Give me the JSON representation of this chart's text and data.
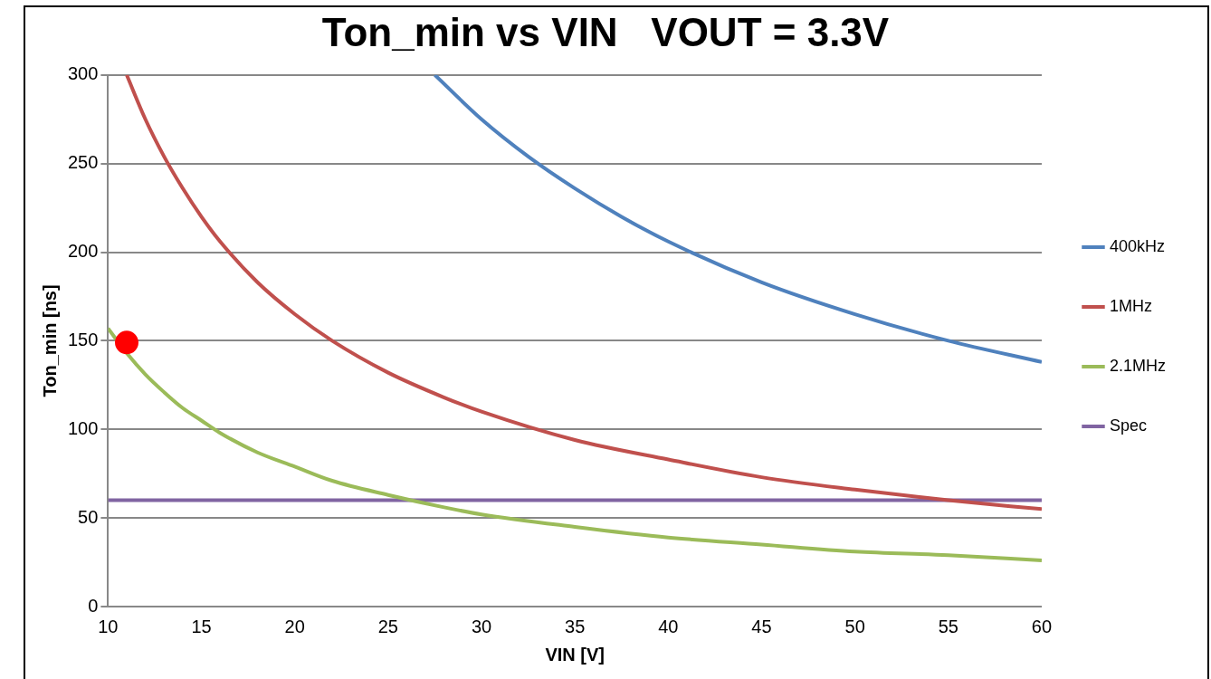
{
  "chart_data": {
    "type": "line",
    "title": "Ton_min vs VIN   VOUT = 3.3V",
    "xlabel": "VIN [V]",
    "ylabel": "Ton_min [ns]",
    "xlim": [
      10,
      60
    ],
    "xticks": [
      10,
      15,
      20,
      25,
      30,
      35,
      40,
      45,
      50,
      55,
      60
    ],
    "ylim": [
      0,
      300
    ],
    "yticks": [
      0,
      50,
      100,
      150,
      200,
      250,
      300
    ],
    "grid": "y",
    "legend": "right",
    "marker": "none",
    "line_style": "solid",
    "series": [
      {
        "name": "400kHz",
        "color": "#4f81bd",
        "x": [
          27.5,
          30,
          32.5,
          35,
          37.5,
          40,
          45,
          50,
          55,
          60
        ],
        "values": [
          300,
          275,
          254,
          236,
          220,
          206,
          183,
          165,
          150,
          138
        ]
      },
      {
        "name": "1MHz",
        "color": "#c0504d",
        "x": [
          11,
          12,
          13,
          14,
          15,
          16,
          18,
          20,
          22,
          25,
          28,
          30,
          35,
          40,
          45,
          50,
          55,
          60
        ],
        "values": [
          300,
          275,
          254,
          236,
          220,
          206,
          183,
          165,
          150,
          132,
          118,
          110,
          94,
          83,
          73,
          66,
          60,
          55
        ]
      },
      {
        "name": "2.1MHz",
        "color": "#9bbb59",
        "x": [
          10,
          11,
          12,
          13,
          14,
          15,
          16,
          18,
          20,
          22,
          25,
          28,
          30,
          35,
          40,
          45,
          50,
          55,
          60
        ],
        "values": [
          157,
          143,
          131,
          121,
          112,
          105,
          98,
          87,
          79,
          71,
          63,
          56,
          52,
          45,
          39,
          35,
          31,
          29,
          26
        ]
      },
      {
        "name": "Spec",
        "color": "#8064a2",
        "x": [
          10,
          60
        ],
        "values": [
          60,
          60
        ]
      },
      {
        "type": "scatter",
        "color": "#ff0000",
        "marker": "circle",
        "x": [
          11
        ],
        "values": [
          149
        ]
      }
    ]
  }
}
